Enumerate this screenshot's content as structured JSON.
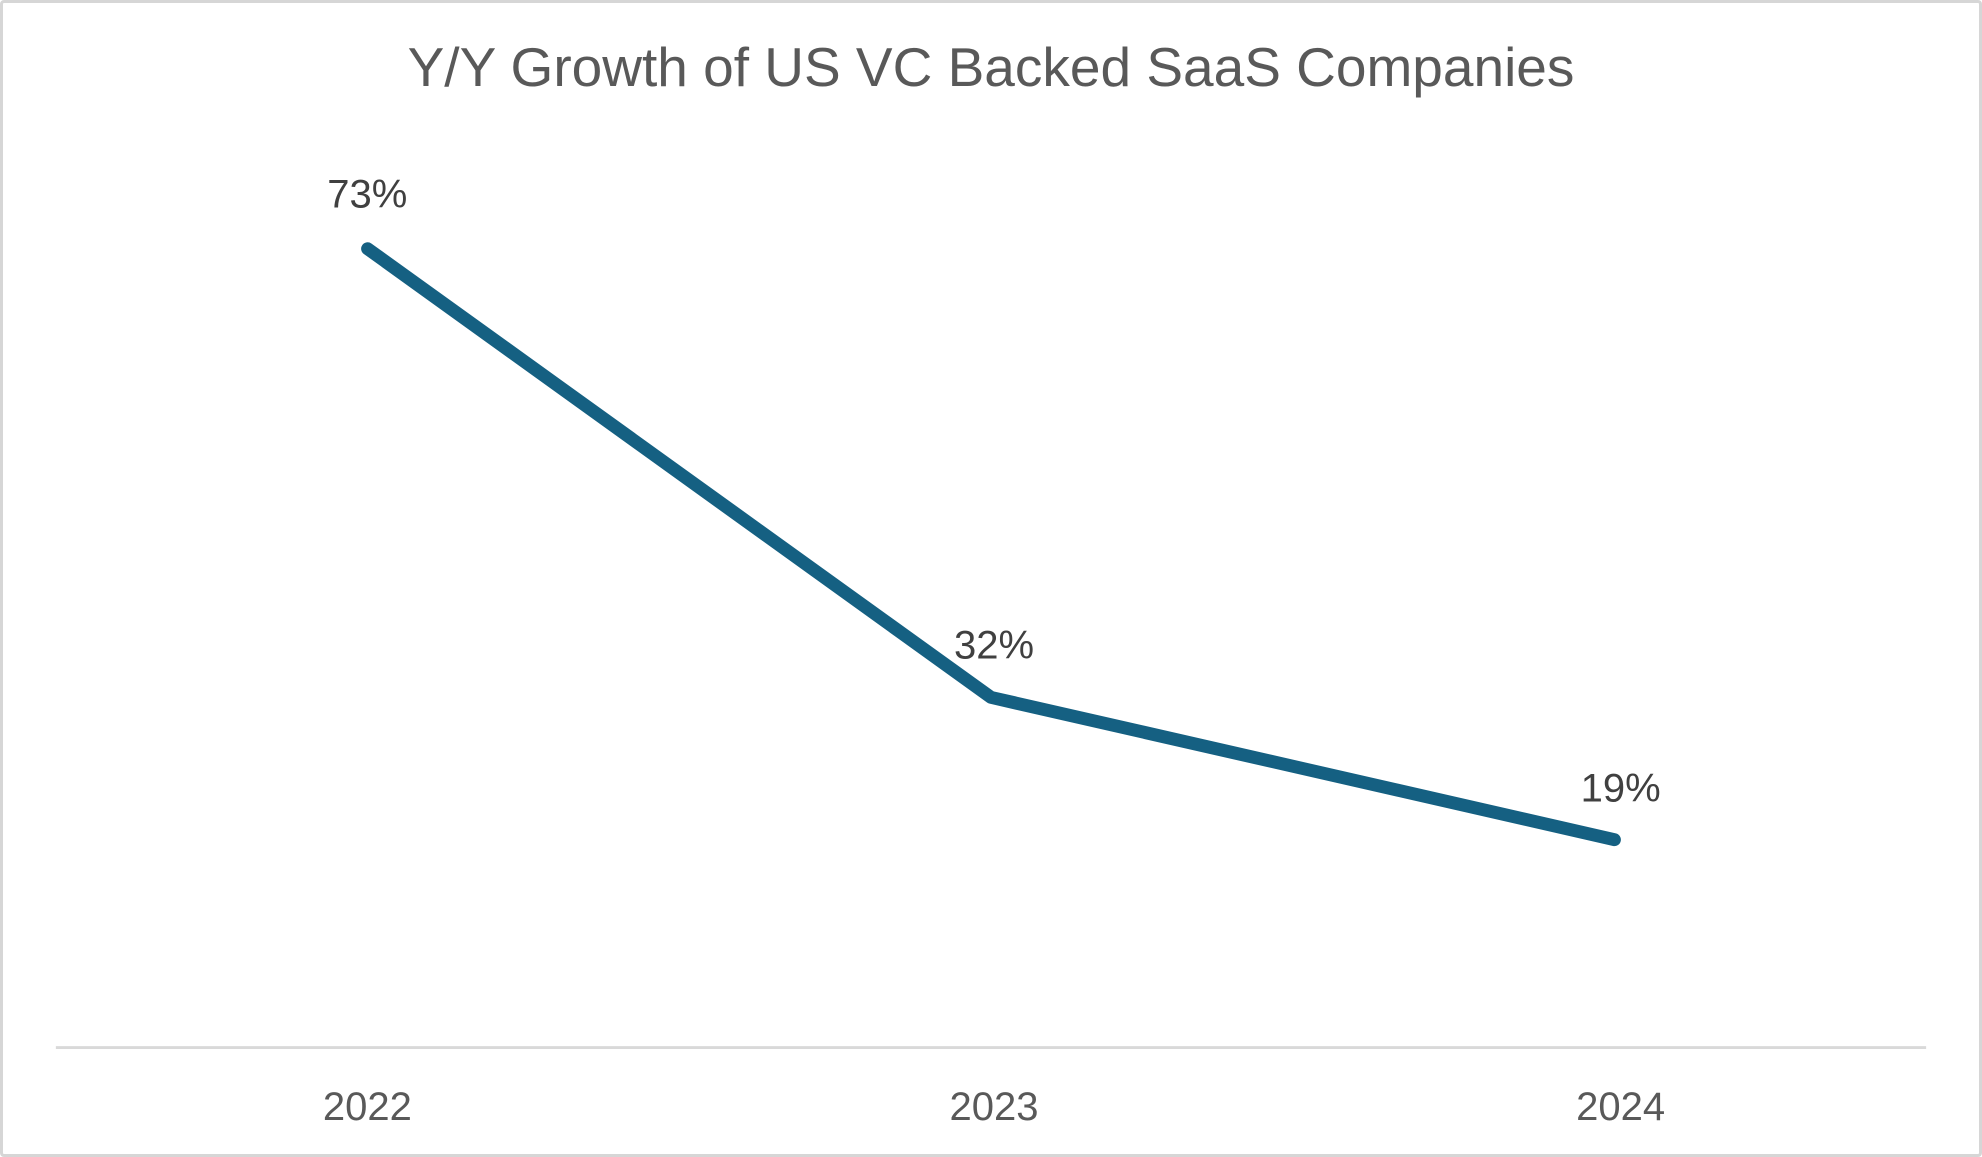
{
  "chart_data": {
    "type": "line",
    "title": "Y/Y Growth of US VC Backed SaaS Companies",
    "categories": [
      "2022",
      "2023",
      "2024"
    ],
    "series": [
      {
        "name": "Y/Y Growth",
        "values": [
          73,
          32,
          19
        ],
        "data_labels": [
          "73%",
          "32%",
          "19%"
        ],
        "color": "#156082"
      }
    ],
    "xlabel": "",
    "ylabel": "",
    "ylim": [
      0,
      80
    ],
    "grid": false,
    "legend": "none",
    "data_label_position": "above",
    "colors": {
      "line": "#156082",
      "axis_line": "#d9d9d9",
      "title_text": "#595959",
      "data_label_text": "#404040",
      "tick_label_text": "#595959",
      "background": "#ffffff",
      "frame_border": "#d6d6d6"
    }
  }
}
